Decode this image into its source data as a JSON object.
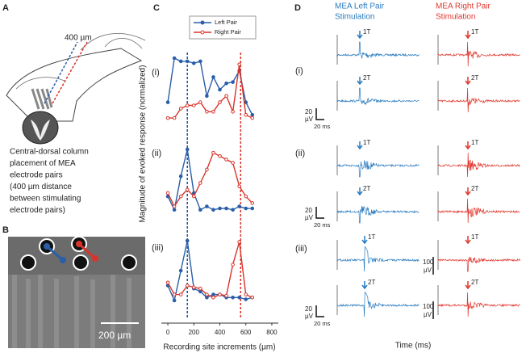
{
  "panel_a": {
    "letter": "A",
    "distance_label": "400 µm",
    "caption": [
      "Central-dorsal column",
      "placement of MEA",
      "electrode pairs",
      "(400 µm distance",
      "between stimulating",
      "electrode pairs)"
    ]
  },
  "panel_b": {
    "letter": "B",
    "scale_label": "200 µm"
  },
  "chart_data": {
    "type": "line",
    "letter": "C",
    "y_label": "Magnitude of evoked response (normalized)",
    "x_label": "Recording site increments (µm)",
    "x": [
      0,
      50,
      100,
      150,
      200,
      250,
      300,
      350,
      400,
      450,
      500,
      550,
      600,
      650
    ],
    "xlim": [
      -50,
      850
    ],
    "xticks": [
      0,
      200,
      400,
      600,
      800
    ],
    "ylim": [
      0,
      1
    ],
    "legend": "top",
    "reference_lines": [
      {
        "x": 150,
        "color": "#1f4f9c"
      },
      {
        "x": 560,
        "color": "#d9342b"
      }
    ],
    "panels": [
      {
        "label": "(i)",
        "series": [
          {
            "name": "Left Pair",
            "color": "#2a5ea8",
            "values": [
              0.3,
              1.0,
              0.95,
              0.95,
              0.92,
              0.95,
              0.4,
              0.7,
              0.5,
              0.6,
              0.62,
              0.8,
              0.3,
              0.1
            ]
          },
          {
            "name": "Right Pair",
            "color": "#d9342b",
            "values": [
              0.05,
              0.05,
              0.2,
              0.25,
              0.25,
              0.3,
              0.15,
              0.15,
              0.3,
              0.4,
              0.15,
              0.9,
              0.1,
              0.05
            ]
          }
        ]
      },
      {
        "label": "(ii)",
        "series": [
          {
            "name": "Left Pair",
            "color": "#2a5ea8",
            "values": [
              0.3,
              0.1,
              0.6,
              1.0,
              0.35,
              0.1,
              0.15,
              0.1,
              0.12,
              0.12,
              0.1,
              0.15,
              0.12,
              0.12
            ]
          },
          {
            "name": "Right Pair",
            "color": "#d9342b",
            "values": [
              0.35,
              0.15,
              0.3,
              0.4,
              0.3,
              0.5,
              0.7,
              0.95,
              0.9,
              0.85,
              0.8,
              0.45,
              0.3,
              0.2
            ]
          }
        ]
      },
      {
        "label": "(iii)",
        "series": [
          {
            "name": "Left Pair",
            "color": "#2a5ea8",
            "values": [
              0.25,
              0.0,
              0.5,
              1.0,
              0.2,
              0.15,
              0.05,
              0.1,
              0.1,
              0.05,
              0.05,
              0.05,
              0.02,
              0.05
            ]
          },
          {
            "name": "Right Pair",
            "color": "#d9342b",
            "values": [
              0.3,
              0.1,
              0.1,
              0.25,
              0.22,
              0.2,
              0.1,
              0.05,
              0.1,
              0.08,
              0.6,
              0.98,
              0.1,
              0.05
            ]
          }
        ]
      }
    ]
  },
  "panel_d": {
    "letter": "D",
    "columns": [
      {
        "title": [
          "MEA Left Pair",
          "Stimulation"
        ],
        "color": "#2a7bbf"
      },
      {
        "title": [
          "MEA Right Pair",
          "Stimulation"
        ],
        "color": "#e0392f"
      }
    ],
    "rows": [
      {
        "label": "(i)",
        "stimuli": [
          "1T",
          "2T"
        ]
      },
      {
        "label": "(ii)",
        "stimuli": [
          "1T",
          "2T"
        ]
      },
      {
        "label": "(iii)",
        "stimuli": [
          "1T",
          "2T"
        ]
      }
    ],
    "scale_bar": {
      "amplitude": "20",
      "unit": "µV",
      "time": "20 ms",
      "amplitude_large": "100"
    },
    "x_label": "Time (ms)"
  }
}
